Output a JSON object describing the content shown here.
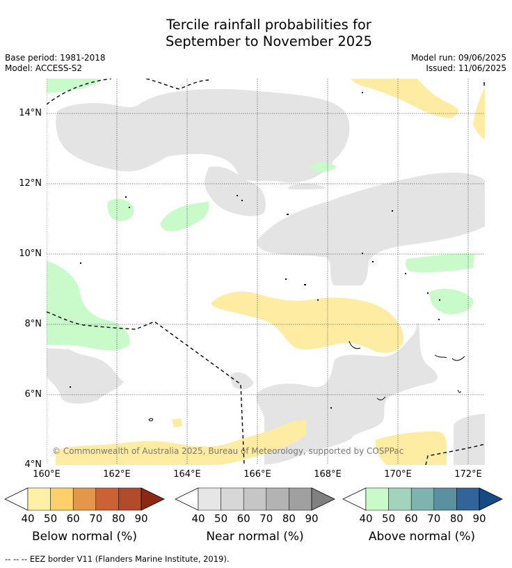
{
  "title_line1": "Tercile rainfall probabilities for",
  "title_line2": "September to November 2025",
  "base_period": "Base period: 1981-2018",
  "model": "Model: ACCESS-S2",
  "model_run": "Model run: 09/06/2025",
  "issued": "Issued: 11/06/2025",
  "copyright": "© Commonwealth of Australia 2025, Bureau of Meteorology, supported by COSPPac",
  "footnote": "-- -- -- EEZ border V11 (Flanders Marine Institute, 2019).",
  "latitude_labels": [
    "14°N",
    "12°N",
    "10°N",
    "8°N",
    "6°N",
    "4°N"
  ],
  "longitude_labels": [
    "160°E",
    "162°E",
    "164°E",
    "166°E",
    "168°E",
    "170°E",
    "172°E"
  ],
  "colorbars": [
    {
      "title": "Below normal (%)",
      "ticks": [
        "40",
        "50",
        "60",
        "70",
        "80",
        "90"
      ],
      "colors": [
        "#ffffff",
        "#fff0a8",
        "#fed06a",
        "#e3974a",
        "#cc6233",
        "#b14b29",
        "#8b2a14"
      ]
    },
    {
      "title": "Near normal (%)",
      "ticks": [
        "40",
        "50",
        "60",
        "70",
        "80",
        "90"
      ],
      "colors": [
        "#ffffff",
        "#e6e6e6",
        "#d7d7d7",
        "#c6c6c6",
        "#b3b3b3",
        "#a0a0a0",
        "#808080"
      ]
    },
    {
      "title": "Above normal (%)",
      "ticks": [
        "40",
        "50",
        "60",
        "70",
        "80",
        "90"
      ],
      "colors": [
        "#ffffff",
        "#c9fac9",
        "#a2d3bd",
        "#7fb3b0",
        "#5b90a0",
        "#31649a",
        "#134b84"
      ]
    }
  ],
  "legend_colors": {
    "below_light": "#fff0a8",
    "near_light": "#e6e6e6",
    "above_light": "#c9fac9"
  }
}
